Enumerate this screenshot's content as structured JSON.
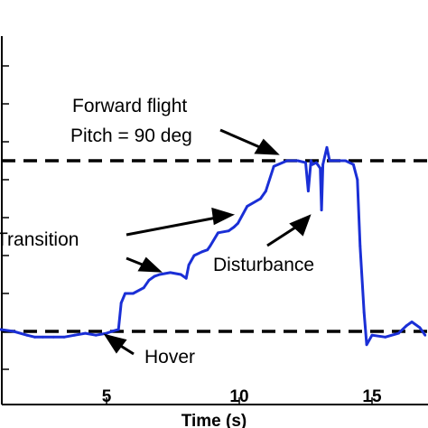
{
  "chart_data": {
    "type": "line",
    "xlabel": "Time (s)",
    "ylabel": "",
    "title": "",
    "xlim": [
      1,
      17
    ],
    "ylim": [
      -10,
      100
    ],
    "x_ticks": [
      5,
      10,
      15
    ],
    "x_tick_labels": [
      "5",
      "10",
      "15"
    ],
    "grid": false,
    "color": "#1a2fd6",
    "reference_lines": [
      {
        "y": 0,
        "style": "dashed"
      },
      {
        "y": 90,
        "style": "dashed"
      }
    ],
    "series": [
      {
        "x": [
          1.0,
          1.5,
          2.0,
          2.3,
          2.6,
          3.0,
          3.4,
          3.8,
          4.2,
          4.6,
          5.0,
          5.2,
          5.45,
          5.55,
          5.7,
          6.0,
          6.4,
          6.6,
          6.8,
          7.0,
          7.4,
          7.8,
          8.0,
          8.1,
          8.3,
          8.6,
          8.8,
          8.9,
          9.2,
          9.6,
          9.8,
          9.95,
          10.3,
          10.8,
          11.0,
          11.3,
          11.8,
          12.2,
          12.5,
          12.6,
          12.7,
          12.75,
          12.9,
          13.05,
          13.1,
          13.15,
          13.3,
          13.4,
          13.6,
          14.0,
          14.3,
          14.45,
          14.55,
          14.7,
          14.8,
          15.0,
          15.5,
          16.0,
          16.3,
          16.5,
          16.8,
          17.0
        ],
        "y": [
          1,
          0,
          -2,
          -3,
          -3,
          -3,
          -3,
          -2,
          -1,
          -2,
          -1,
          0,
          1,
          15,
          20,
          20,
          23,
          27,
          29,
          30,
          31,
          30,
          28,
          35,
          40,
          42,
          43,
          45,
          52,
          53,
          55,
          57,
          66,
          70,
          74,
          87,
          90,
          90,
          89,
          74,
          90,
          88,
          89,
          86,
          64,
          88,
          97,
          90,
          90,
          90,
          88,
          80,
          45,
          10,
          -7,
          -2,
          -3,
          -1,
          3,
          5,
          2,
          -2
        ]
      }
    ],
    "annotations": [
      {
        "lines": [
          "Forward flight",
          "Pitch = 90 deg"
        ]
      },
      {
        "lines": [
          "Transition"
        ]
      },
      {
        "lines": [
          "Disturbance"
        ]
      },
      {
        "lines": [
          "Hover"
        ]
      }
    ]
  }
}
